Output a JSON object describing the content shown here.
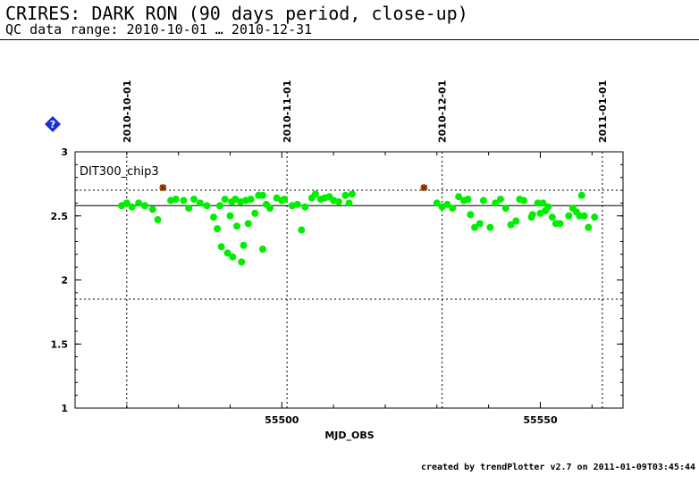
{
  "header": {
    "title": "CRIRES: DARK RON (90 days period, close-up)",
    "subtitle": "QC data range: 2010-10-01 … 2010-12-31"
  },
  "footer": {
    "text": "created by trendPlotter v2.7 on 2011-01-09T03:45:44"
  },
  "help_icon": {
    "name": "help-icon",
    "color": "#1a2fd6"
  },
  "chart_data": {
    "type": "scatter",
    "title": "DIT300_chip3",
    "xlabel": "MJD_OBS",
    "ylabel": "",
    "xlim": [
      55460,
      55566
    ],
    "ylim": [
      1,
      3
    ],
    "x_ticks": [
      55500,
      55550
    ],
    "y_ticks": [
      1,
      1.5,
      2,
      2.5,
      3
    ],
    "y_tick_labels": [
      "1",
      "1.5",
      "2",
      "2.5",
      "3"
    ],
    "date_markers": [
      {
        "label": "2010-10-01",
        "x": 55470
      },
      {
        "label": "2010-11-01",
        "x": 55501
      },
      {
        "label": "2010-12-01",
        "x": 55531
      },
      {
        "label": "2011-01-01",
        "x": 55562
      }
    ],
    "reference_line": 2.58,
    "threshold_lines": [
      2.7,
      1.85
    ],
    "grid": false,
    "colors": {
      "points": "#00ee00",
      "outliers": "#9b6a1d",
      "outlier_edge": "#8b0000"
    },
    "series": [
      {
        "points": [
          [
            55469.0,
            2.58
          ],
          [
            55470.0,
            2.6
          ],
          [
            55471.0,
            2.57
          ],
          [
            55472.3,
            2.6
          ],
          [
            55473.5,
            2.58
          ],
          [
            55475.0,
            2.55
          ],
          [
            55476.0,
            2.47
          ],
          [
            55478.5,
            2.62
          ],
          [
            55479.5,
            2.63
          ],
          [
            55481.0,
            2.62
          ],
          [
            55482.0,
            2.56
          ],
          [
            55483.0,
            2.63
          ],
          [
            55484.2,
            2.6
          ],
          [
            55485.5,
            2.58
          ],
          [
            55486.8,
            2.49
          ],
          [
            55487.5,
            2.4
          ],
          [
            55488.0,
            2.58
          ],
          [
            55488.3,
            2.26
          ],
          [
            55489.0,
            2.63
          ],
          [
            55489.5,
            2.21
          ],
          [
            55490.0,
            2.5
          ],
          [
            55490.3,
            2.61
          ],
          [
            55490.5,
            2.18
          ],
          [
            55491.0,
            2.63
          ],
          [
            55491.3,
            2.42
          ],
          [
            55492.0,
            2.61
          ],
          [
            55492.2,
            2.14
          ],
          [
            55492.6,
            2.27
          ],
          [
            55493.0,
            2.62
          ],
          [
            55493.5,
            2.44
          ],
          [
            55494.0,
            2.63
          ],
          [
            55494.8,
            2.52
          ],
          [
            55495.5,
            2.66
          ],
          [
            55496.3,
            2.66
          ],
          [
            55496.3,
            2.24
          ],
          [
            55497.0,
            2.59
          ],
          [
            55497.7,
            2.56
          ],
          [
            55499.0,
            2.64
          ],
          [
            55500.0,
            2.62
          ],
          [
            55500.5,
            2.63
          ],
          [
            55502.0,
            2.58
          ],
          [
            55503.0,
            2.59
          ],
          [
            55503.8,
            2.39
          ],
          [
            55504.5,
            2.57
          ],
          [
            55505.8,
            2.64
          ],
          [
            55506.5,
            2.67
          ],
          [
            55507.5,
            2.63
          ],
          [
            55508.3,
            2.64
          ],
          [
            55509.2,
            2.65
          ],
          [
            55510.0,
            2.62
          ],
          [
            55511.0,
            2.61
          ],
          [
            55512.3,
            2.66
          ],
          [
            55513.0,
            2.6
          ],
          [
            55513.6,
            2.67
          ],
          [
            55530.0,
            2.6
          ],
          [
            55531.0,
            2.57
          ],
          [
            55532.0,
            2.59
          ],
          [
            55533.0,
            2.56
          ],
          [
            55534.2,
            2.65
          ],
          [
            55535.2,
            2.62
          ],
          [
            55536.0,
            2.63
          ],
          [
            55536.5,
            2.51
          ],
          [
            55537.3,
            2.41
          ],
          [
            55538.3,
            2.44
          ],
          [
            55539.0,
            2.62
          ],
          [
            55540.3,
            2.41
          ],
          [
            55541.3,
            2.6
          ],
          [
            55542.3,
            2.63
          ],
          [
            55543.3,
            2.56
          ],
          [
            55544.3,
            2.43
          ],
          [
            55545.3,
            2.46
          ],
          [
            55546.0,
            2.63
          ],
          [
            55546.8,
            2.62
          ],
          [
            55548.3,
            2.49
          ],
          [
            55548.5,
            2.51
          ],
          [
            55549.5,
            2.6
          ],
          [
            55550.0,
            2.52
          ],
          [
            55550.5,
            2.6
          ],
          [
            55551.0,
            2.54
          ],
          [
            55551.5,
            2.57
          ],
          [
            55552.3,
            2.49
          ],
          [
            55553.0,
            2.44
          ],
          [
            55553.8,
            2.44
          ],
          [
            55555.5,
            2.5
          ],
          [
            55556.3,
            2.56
          ],
          [
            55557.0,
            2.53
          ],
          [
            55557.6,
            2.5
          ],
          [
            55558.0,
            2.66
          ],
          [
            55558.5,
            2.5
          ],
          [
            55559.3,
            2.41
          ],
          [
            55560.5,
            2.49
          ]
        ]
      },
      {
        "name": "outliers",
        "points": [
          [
            55477.0,
            2.72
          ],
          [
            55527.5,
            2.72
          ]
        ]
      }
    ]
  }
}
